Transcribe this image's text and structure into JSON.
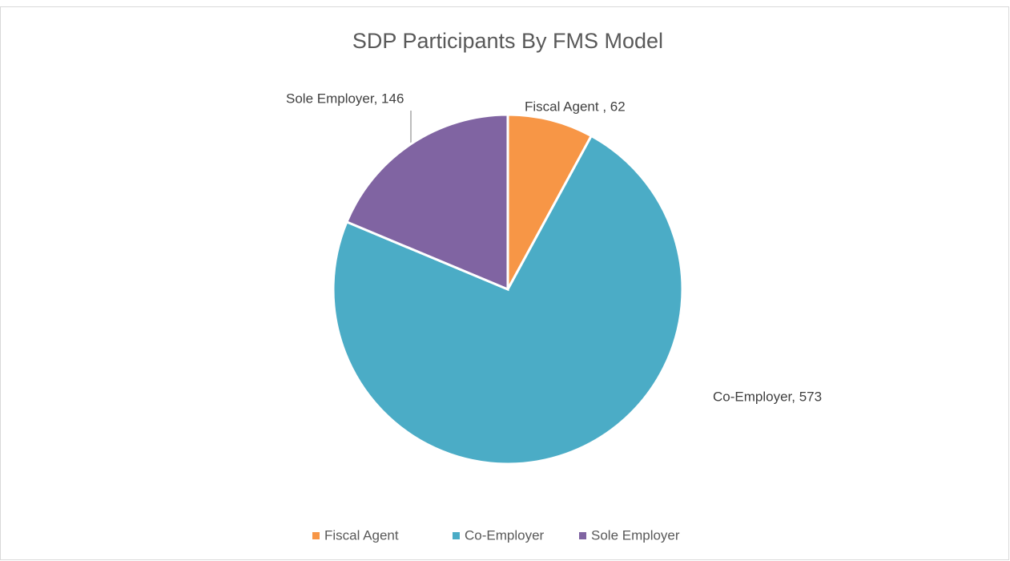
{
  "chart_data": {
    "type": "pie",
    "title": "SDP Participants By FMS Model",
    "categories": [
      "Fiscal Agent",
      "Co-Employer",
      "Sole Employer"
    ],
    "values": [
      62,
      573,
      146
    ],
    "value_labels": [
      "Fiscal Agent , 62",
      "Co-Employer, 573",
      "Sole Employer, 146"
    ],
    "colors": [
      "#f79646",
      "#4bacc6",
      "#8064a2"
    ],
    "legend": "bottom"
  }
}
